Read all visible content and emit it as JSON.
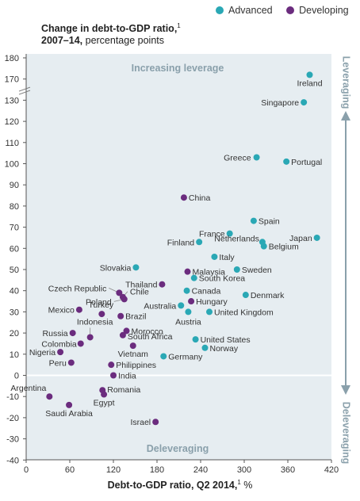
{
  "legend": {
    "advanced": "Advanced",
    "developing": "Developing"
  },
  "title": {
    "line1": "Change in debt-to-GDP ratio,",
    "line1_note": "1",
    "line2_bold": "2007–14,",
    "line2_rest": " percentage points"
  },
  "xaxis_title": {
    "text": "Debt-to-GDP ratio, Q2 2014,",
    "note": "1",
    "unit": " %"
  },
  "annotations": {
    "increasing": "Increasing leverage",
    "deleveraging_zone": "Deleveraging",
    "right_top": "Leveraging",
    "right_bottom": "Deleveraging"
  },
  "colors": {
    "advanced": "#2aa8b5",
    "developing": "#6b2c7e",
    "zone_shade": "#e6edf1",
    "annotation": "#8aa0ab",
    "arrow": "#8aa0ab"
  },
  "chart_data": {
    "type": "scatter",
    "xlabel": "Debt-to-GDP ratio, Q2 2014, %",
    "ylabel": "Change in debt-to-GDP ratio, 2007–14, percentage points",
    "xlim": [
      0,
      420
    ],
    "ylim": [
      -40,
      180
    ],
    "y_axis_break": [
      130,
      170
    ],
    "x_ticks": [
      0,
      60,
      120,
      180,
      240,
      300,
      360,
      420
    ],
    "y_ticks": [
      -40,
      -30,
      -20,
      -10,
      0,
      10,
      20,
      30,
      40,
      50,
      60,
      70,
      80,
      90,
      100,
      110,
      120,
      130,
      170,
      180
    ],
    "grid": false,
    "legend_position": "top-right",
    "series": [
      {
        "name": "Advanced",
        "points": [
          {
            "label": "Ireland",
            "x": 390,
            "y": 172
          },
          {
            "label": "Singapore",
            "x": 382,
            "y": 129
          },
          {
            "label": "Greece",
            "x": 317,
            "y": 103
          },
          {
            "label": "Portugal",
            "x": 358,
            "y": 101
          },
          {
            "label": "Spain",
            "x": 313,
            "y": 73
          },
          {
            "label": "France",
            "x": 280,
            "y": 67
          },
          {
            "label": "Finland",
            "x": 238,
            "y": 63
          },
          {
            "label": "Netherlands",
            "x": 325,
            "y": 63
          },
          {
            "label": "Belgium",
            "x": 327,
            "y": 61
          },
          {
            "label": "Japan",
            "x": 400,
            "y": 65
          },
          {
            "label": "Italy",
            "x": 259,
            "y": 56
          },
          {
            "label": "Slovakia",
            "x": 151,
            "y": 51
          },
          {
            "label": "Sweden",
            "x": 290,
            "y": 50
          },
          {
            "label": "South Korea",
            "x": 231,
            "y": 46
          },
          {
            "label": "Canada",
            "x": 221,
            "y": 40
          },
          {
            "label": "Denmark",
            "x": 302,
            "y": 38
          },
          {
            "label": "Australia",
            "x": 213,
            "y": 33
          },
          {
            "label": "Austria",
            "x": 223,
            "y": 30
          },
          {
            "label": "United Kingdom",
            "x": 252,
            "y": 30
          },
          {
            "label": "United States",
            "x": 233,
            "y": 17
          },
          {
            "label": "Norway",
            "x": 246,
            "y": 13
          },
          {
            "label": "Germany",
            "x": 189,
            "y": 9
          }
        ]
      },
      {
        "name": "Developing",
        "points": [
          {
            "label": "China",
            "x": 217,
            "y": 84
          },
          {
            "label": "Thailand",
            "x": 187,
            "y": 43
          },
          {
            "label": "Malaysia",
            "x": 222,
            "y": 49
          },
          {
            "label": "Czech Republic",
            "x": 128,
            "y": 39
          },
          {
            "label": "Chile",
            "x": 133,
            "y": 37
          },
          {
            "label": "Poland",
            "x": 135,
            "y": 36
          },
          {
            "label": "Hungary",
            "x": 227,
            "y": 35
          },
          {
            "label": "Mexico",
            "x": 73,
            "y": 31
          },
          {
            "label": "Turkey",
            "x": 104,
            "y": 29
          },
          {
            "label": "Brazil",
            "x": 130,
            "y": 28
          },
          {
            "label": "Morocco",
            "x": 138,
            "y": 21
          },
          {
            "label": "South Africa",
            "x": 133,
            "y": 19
          },
          {
            "label": "Indonesia",
            "x": 88,
            "y": 18
          },
          {
            "label": "Russia",
            "x": 64,
            "y": 20
          },
          {
            "label": "Colombia",
            "x": 75,
            "y": 15
          },
          {
            "label": "Vietnam",
            "x": 147,
            "y": 14
          },
          {
            "label": "Nigeria",
            "x": 47,
            "y": 11
          },
          {
            "label": "Peru",
            "x": 62,
            "y": 6
          },
          {
            "label": "Philippines",
            "x": 117,
            "y": 5
          },
          {
            "label": "India",
            "x": 120,
            "y": 0
          },
          {
            "label": "Argentina",
            "x": 32,
            "y": -10
          },
          {
            "label": "Romania",
            "x": 105,
            "y": -7
          },
          {
            "label": "Egypt",
            "x": 107,
            "y": -9
          },
          {
            "label": "Saudi Arabia",
            "x": 59,
            "y": -14
          },
          {
            "label": "Israel",
            "x": 178,
            "y": -22
          }
        ]
      }
    ]
  }
}
